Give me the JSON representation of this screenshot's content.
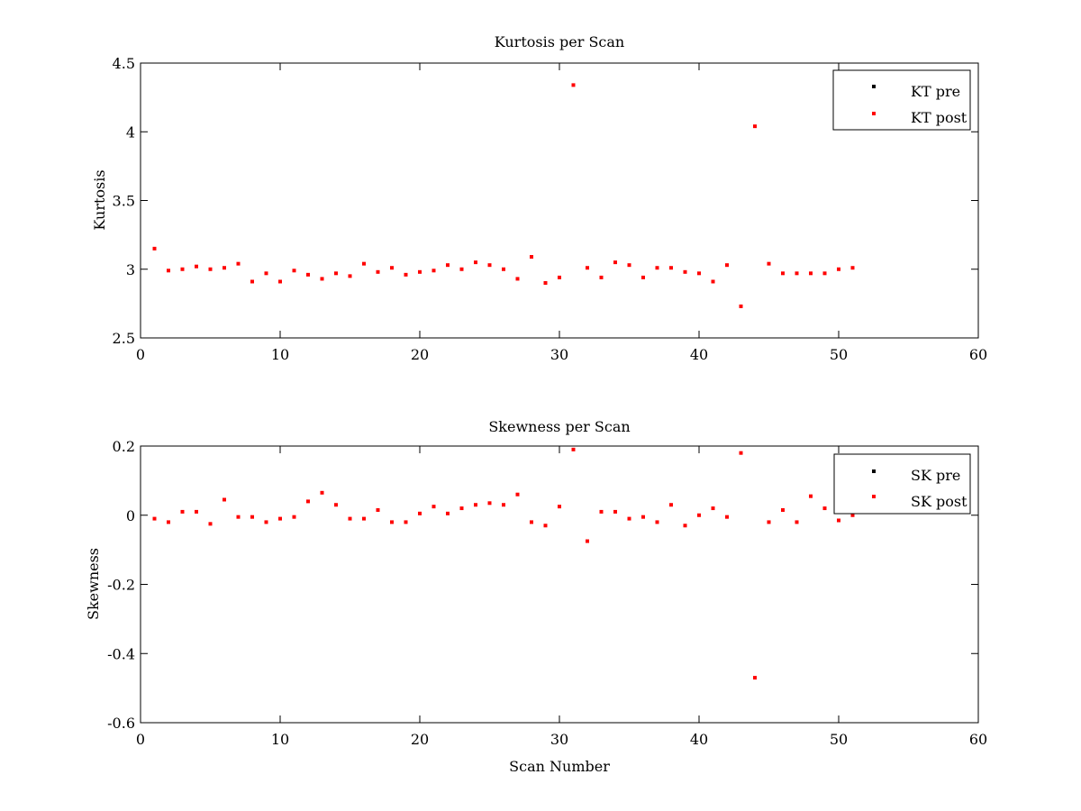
{
  "chart_data": [
    {
      "type": "scatter",
      "title": "Kurtosis per Scan",
      "xlabel": "",
      "ylabel": "Kurtosis",
      "xlim": [
        0,
        60
      ],
      "ylim": [
        2.5,
        4.5
      ],
      "xticks": [
        0,
        10,
        20,
        30,
        40,
        50,
        60
      ],
      "yticks": [
        2.5,
        3,
        3.5,
        4,
        4.5
      ],
      "xtick_labels": [
        "0",
        "10",
        "20",
        "30",
        "40",
        "50",
        "60"
      ],
      "ytick_labels": [
        "2.5",
        "3",
        "3.5",
        "4",
        "4.5"
      ],
      "legend_position": "top-right",
      "series": [
        {
          "name": "KT pre",
          "color": "#000000",
          "x": [],
          "y": []
        },
        {
          "name": "KT post",
          "color": "#ff0000",
          "x": [
            1,
            2,
            3,
            4,
            5,
            6,
            7,
            8,
            9,
            10,
            11,
            12,
            13,
            14,
            15,
            16,
            17,
            18,
            19,
            20,
            21,
            22,
            23,
            24,
            25,
            26,
            27,
            28,
            29,
            30,
            31,
            32,
            33,
            34,
            35,
            36,
            37,
            38,
            39,
            40,
            41,
            42,
            43,
            44,
            45,
            46,
            47,
            48,
            49,
            50,
            51
          ],
          "y": [
            3.15,
            2.99,
            3.0,
            3.02,
            3.0,
            3.01,
            3.04,
            2.91,
            2.97,
            2.91,
            2.99,
            2.96,
            2.93,
            2.97,
            2.95,
            3.04,
            2.98,
            3.01,
            2.96,
            2.98,
            2.99,
            3.03,
            3.0,
            3.05,
            3.03,
            3.0,
            2.93,
            3.09,
            2.9,
            2.94,
            4.34,
            3.01,
            2.94,
            3.05,
            3.03,
            2.94,
            3.01,
            3.01,
            2.98,
            2.97,
            2.91,
            3.03,
            2.73,
            4.04,
            3.04,
            2.97,
            2.97,
            2.97,
            2.97,
            3.0,
            3.01
          ]
        }
      ]
    },
    {
      "type": "scatter",
      "title": "Skewness per Scan",
      "xlabel": "Scan Number",
      "ylabel": "Skewness",
      "xlim": [
        0,
        60
      ],
      "ylim": [
        -0.6,
        0.2
      ],
      "xticks": [
        0,
        10,
        20,
        30,
        40,
        50,
        60
      ],
      "yticks": [
        -0.6,
        -0.4,
        -0.2,
        0,
        0.2
      ],
      "xtick_labels": [
        "0",
        "10",
        "20",
        "30",
        "40",
        "50",
        "60"
      ],
      "ytick_labels": [
        "-0.6",
        "-0.4",
        "-0.2",
        "0",
        "0.2"
      ],
      "legend_position": "top-right",
      "series": [
        {
          "name": "SK pre",
          "color": "#000000",
          "x": [],
          "y": []
        },
        {
          "name": "SK post",
          "color": "#ff0000",
          "x": [
            1,
            2,
            3,
            4,
            5,
            6,
            7,
            8,
            9,
            10,
            11,
            12,
            13,
            14,
            15,
            16,
            17,
            18,
            19,
            20,
            21,
            22,
            23,
            24,
            25,
            26,
            27,
            28,
            29,
            30,
            31,
            32,
            33,
            34,
            35,
            36,
            37,
            38,
            39,
            40,
            41,
            42,
            43,
            44,
            45,
            46,
            47,
            48,
            49,
            50,
            51
          ],
          "y": [
            -0.01,
            -0.02,
            0.01,
            0.01,
            -0.025,
            0.045,
            -0.005,
            -0.005,
            -0.02,
            -0.01,
            -0.005,
            0.04,
            0.065,
            0.03,
            -0.01,
            -0.01,
            0.015,
            -0.02,
            -0.02,
            0.005,
            0.025,
            0.005,
            0.02,
            0.03,
            0.035,
            0.03,
            0.06,
            -0.02,
            -0.03,
            0.025,
            0.19,
            -0.075,
            0.01,
            0.01,
            -0.01,
            -0.005,
            -0.02,
            0.03,
            -0.03,
            0.0,
            0.02,
            -0.005,
            0.18,
            -0.47,
            -0.02,
            0.015,
            -0.02,
            0.055,
            0.02,
            -0.015,
            0.0
          ]
        }
      ]
    }
  ]
}
